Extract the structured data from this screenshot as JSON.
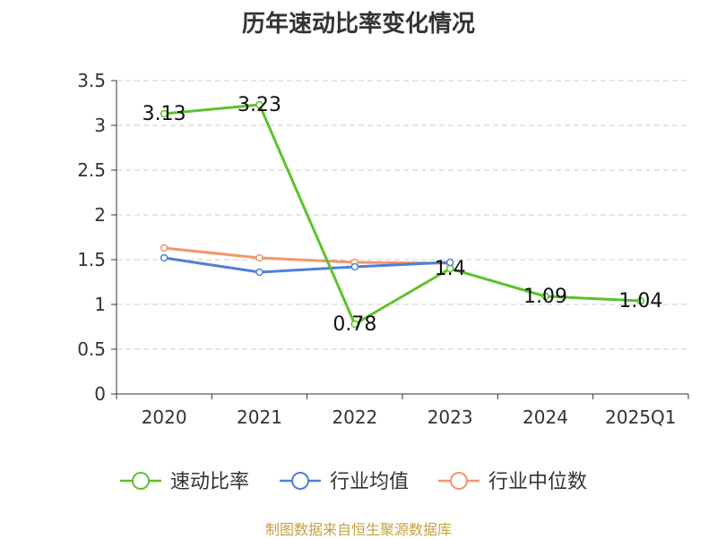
{
  "chart_data": {
    "type": "line",
    "title": "历年速动比率变化情况",
    "categories": [
      "2020",
      "2021",
      "2022",
      "2023",
      "2024",
      "2025Q1"
    ],
    "ylim": [
      0,
      3.5
    ],
    "yticks": [
      "0",
      "0.5",
      "1",
      "1.5",
      "2",
      "2.5",
      "3",
      "3.5"
    ],
    "grid": true,
    "legend_position": "bottom",
    "series": [
      {
        "name": "速动比率",
        "color": "#5cc22b",
        "values": [
          3.13,
          3.23,
          0.78,
          1.4,
          1.09,
          1.04
        ],
        "labels": [
          "3.13",
          "3.23",
          "0.78",
          "1.4",
          "1.09",
          "1.04"
        ]
      },
      {
        "name": "行业均值",
        "color": "#4f7fd8",
        "values": [
          1.52,
          1.36,
          1.42,
          1.47,
          null,
          null
        ]
      },
      {
        "name": "行业中位数",
        "color": "#f4946a",
        "values": [
          1.63,
          1.52,
          1.47,
          1.46,
          null,
          null
        ]
      }
    ]
  },
  "source": {
    "text": "制图数据来自恒生聚源数据库",
    "color": "#c8a040"
  }
}
